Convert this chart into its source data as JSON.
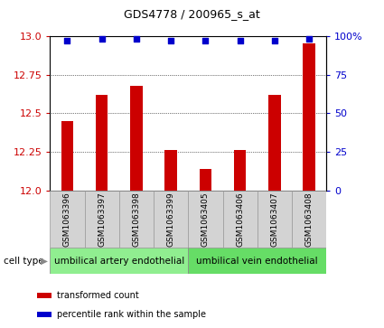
{
  "title": "GDS4778 / 200965_s_at",
  "samples": [
    "GSM1063396",
    "GSM1063397",
    "GSM1063398",
    "GSM1063399",
    "GSM1063405",
    "GSM1063406",
    "GSM1063407",
    "GSM1063408"
  ],
  "transformed_count": [
    12.45,
    12.62,
    12.68,
    12.26,
    12.14,
    12.26,
    12.62,
    12.95
  ],
  "percentile_rank": [
    97,
    98,
    98,
    97,
    97,
    97,
    97,
    98
  ],
  "ylim_left": [
    12.0,
    13.0
  ],
  "ylim_right": [
    0,
    100
  ],
  "yticks_left": [
    12.0,
    12.25,
    12.5,
    12.75,
    13.0
  ],
  "yticks_right": [
    0,
    25,
    50,
    75,
    100
  ],
  "bar_color": "#cc0000",
  "dot_color": "#0000cc",
  "cell_types": [
    {
      "label": "umbilical artery endothelial",
      "start": 0,
      "end": 4,
      "color": "#90ee90"
    },
    {
      "label": "umbilical vein endothelial",
      "start": 4,
      "end": 8,
      "color": "#66dd66"
    }
  ],
  "cell_type_label": "cell type",
  "legend_bar_label": "transformed count",
  "legend_dot_label": "percentile rank within the sample",
  "tick_label_bg": "#d3d3d3",
  "bar_width": 0.35,
  "dot_size": 5,
  "percentile_marker": "s",
  "title_fontsize": 9,
  "axis_fontsize": 8,
  "label_fontsize": 6.5,
  "cell_fontsize": 7.5,
  "legend_fontsize": 7
}
